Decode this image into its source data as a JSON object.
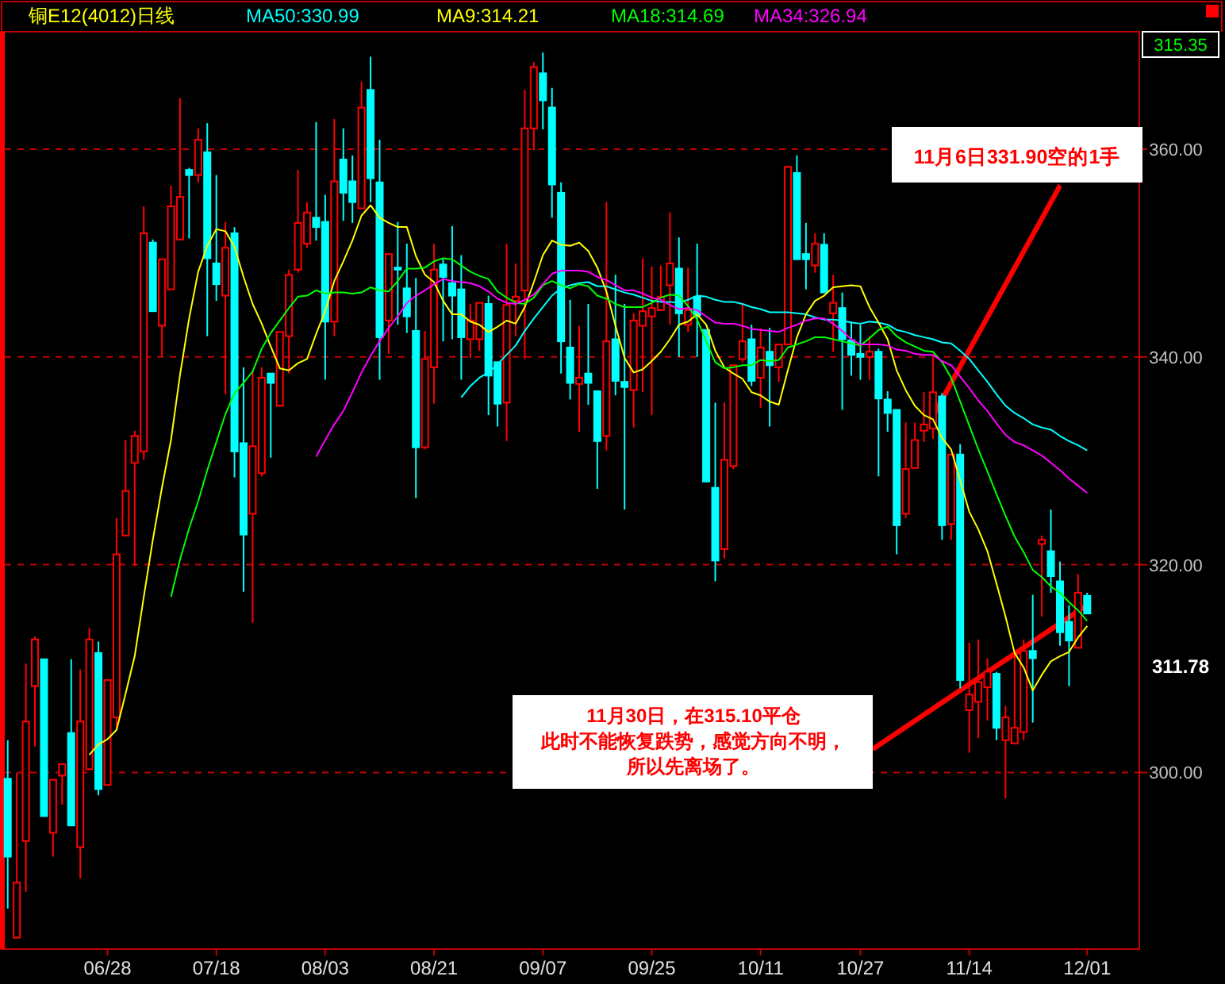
{
  "chart_data": {
    "type": "candlestick",
    "title": "铜E12(4012)日线",
    "categories": [
      null,
      null,
      null,
      null,
      null,
      null,
      null,
      null,
      null,
      null,
      null,
      "06/28",
      null,
      null,
      null,
      null,
      null,
      null,
      null,
      null,
      null,
      null,
      null,
      "07/18",
      null,
      null,
      null,
      null,
      null,
      null,
      null,
      null,
      null,
      null,
      null,
      "08/03",
      null,
      null,
      null,
      null,
      null,
      null,
      null,
      null,
      null,
      null,
      null,
      "08/21",
      null,
      null,
      null,
      null,
      null,
      null,
      null,
      null,
      null,
      null,
      null,
      "09/07",
      null,
      null,
      null,
      null,
      null,
      null,
      null,
      null,
      null,
      null,
      null,
      "09/25",
      null,
      null,
      null,
      null,
      null,
      null,
      null,
      null,
      null,
      null,
      null,
      "10/11",
      null,
      null,
      null,
      null,
      null,
      null,
      null,
      null,
      null,
      null,
      "10/27",
      null,
      null,
      null,
      null,
      null,
      null,
      null,
      null,
      null,
      null,
      null,
      "11/14",
      null,
      null,
      null,
      null,
      null,
      null,
      null,
      null,
      null,
      null,
      null,
      null,
      "12/01"
    ],
    "ohlc": [
      [
        299.4,
        303.1,
        286.9,
        291.9
      ],
      [
        284.1,
        300.0,
        284.1,
        289.4
      ],
      [
        293.4,
        310.5,
        288.5,
        304.9
      ],
      [
        308.3,
        313.1,
        302.5,
        312.8
      ],
      [
        310.9,
        310.9,
        295.8,
        295.8
      ],
      [
        294.2,
        299.3,
        291.9,
        299.3
      ],
      [
        299.7,
        300.8,
        296.9,
        300.8
      ],
      [
        303.8,
        310.9,
        294.9,
        294.9
      ],
      [
        292.8,
        309.9,
        289.8,
        304.9
      ],
      [
        300.3,
        313.9,
        300.3,
        312.8
      ],
      [
        311.5,
        312.6,
        297.8,
        298.4
      ],
      [
        298.8,
        308.9,
        298.8,
        308.9
      ],
      [
        305.3,
        324.5,
        304.2,
        321.0
      ],
      [
        322.8,
        332.0,
        322.8,
        327.1
      ],
      [
        329.8,
        332.9,
        319.9,
        332.4
      ],
      [
        330.9,
        354.5,
        330.1,
        351.9
      ],
      [
        351.0,
        351.3,
        344.4,
        344.4
      ],
      [
        343.0,
        349.4,
        340.0,
        349.4
      ],
      [
        346.5,
        356.5,
        346.5,
        354.5
      ],
      [
        351.3,
        364.9,
        351.3,
        355.4
      ],
      [
        358.0,
        358.2,
        351.4,
        357.5
      ],
      [
        357.5,
        362.0,
        356.8,
        360.9
      ],
      [
        359.7,
        362.5,
        342.0,
        349.5
      ],
      [
        349.0,
        357.5,
        345.4,
        347.0
      ],
      [
        345.9,
        353.0,
        336.4,
        350.5
      ],
      [
        351.9,
        352.5,
        328.4,
        330.9
      ],
      [
        331.7,
        339.0,
        317.4,
        322.9
      ],
      [
        324.9,
        338.7,
        314.4,
        331.4
      ],
      [
        328.8,
        339.0,
        328.5,
        338.0
      ],
      [
        338.4,
        338.4,
        330.3,
        337.5
      ],
      [
        335.3,
        342.4,
        335.3,
        342.4
      ],
      [
        342.0,
        348.4,
        338.4,
        347.9
      ],
      [
        348.4,
        358.0,
        348.1,
        352.9
      ],
      [
        350.9,
        354.9,
        350.5,
        353.9
      ],
      [
        353.4,
        362.6,
        351.2,
        352.5
      ],
      [
        353.0,
        355.6,
        337.8,
        343.4
      ],
      [
        343.4,
        362.9,
        342.0,
        356.9
      ],
      [
        359.0,
        362.0,
        353.1,
        355.8
      ],
      [
        356.9,
        359.4,
        352.9,
        354.9
      ],
      [
        354.3,
        366.5,
        354.3,
        364.0
      ],
      [
        365.7,
        368.9,
        354.9,
        357.2
      ],
      [
        356.8,
        360.9,
        337.8,
        341.9
      ],
      [
        343.5,
        349.9,
        340.3,
        349.9
      ],
      [
        348.6,
        353.0,
        343.1,
        348.4
      ],
      [
        346.6,
        350.9,
        342.3,
        343.9
      ],
      [
        342.5,
        347.6,
        326.4,
        331.3
      ],
      [
        331.3,
        342.5,
        331.1,
        339.8
      ],
      [
        339.0,
        350.9,
        335.5,
        348.4
      ],
      [
        348.9,
        349.4,
        341.5,
        347.7
      ],
      [
        347.1,
        352.6,
        341.7,
        345.9
      ],
      [
        346.5,
        349.8,
        337.8,
        341.9
      ],
      [
        341.7,
        345.1,
        339.9,
        343.5
      ],
      [
        341.7,
        345.2,
        340.6,
        345.2
      ],
      [
        345.1,
        345.9,
        334.4,
        338.2
      ],
      [
        339.5,
        339.5,
        333.3,
        335.5
      ],
      [
        335.6,
        350.9,
        331.9,
        345.0
      ],
      [
        345.4,
        349.0,
        342.0,
        345.8
      ],
      [
        346.4,
        365.7,
        339.8,
        362.0
      ],
      [
        362.0,
        368.4,
        359.9,
        367.9
      ],
      [
        367.3,
        369.3,
        361.9,
        364.7
      ],
      [
        364.0,
        365.9,
        353.4,
        356.6
      ],
      [
        355.8,
        356.8,
        338.4,
        341.5
      ],
      [
        340.9,
        345.5,
        335.9,
        337.5
      ],
      [
        337.4,
        343.0,
        332.8,
        338.0
      ],
      [
        338.4,
        345.1,
        335.4,
        337.5
      ],
      [
        336.7,
        336.7,
        327.3,
        331.9
      ],
      [
        332.4,
        354.9,
        331.0,
        341.5
      ],
      [
        341.7,
        347.9,
        336.3,
        337.7
      ],
      [
        337.6,
        345.1,
        325.3,
        337.1
      ],
      [
        336.8,
        344.2,
        333.2,
        343.5
      ],
      [
        343.0,
        349.5,
        336.6,
        344.4
      ],
      [
        343.9,
        348.7,
        334.4,
        344.7
      ],
      [
        344.5,
        348.8,
        344.5,
        345.8
      ],
      [
        346.9,
        353.9,
        343.1,
        349.0
      ],
      [
        348.5,
        351.5,
        340.0,
        344.2
      ],
      [
        343.1,
        348.6,
        342.4,
        344.5
      ],
      [
        345.8,
        350.9,
        340.0,
        344.0
      ],
      [
        342.6,
        342.6,
        328.0,
        328.0
      ],
      [
        327.4,
        335.6,
        318.4,
        320.4
      ],
      [
        321.5,
        335.6,
        320.6,
        330.1
      ],
      [
        329.5,
        339.2,
        329.2,
        339.2
      ],
      [
        339.8,
        345.1,
        339.5,
        341.5
      ],
      [
        341.7,
        343.1,
        337.2,
        337.7
      ],
      [
        338.0,
        342.7,
        335.1,
        340.9
      ],
      [
        340.5,
        342.8,
        333.3,
        339.2
      ],
      [
        339.0,
        341.2,
        337.6,
        341.2
      ],
      [
        341.2,
        358.4,
        341.2,
        358.3
      ],
      [
        357.7,
        359.4,
        349.4,
        349.4
      ],
      [
        349.9,
        352.9,
        346.5,
        349.4
      ],
      [
        348.8,
        351.9,
        348.1,
        350.9
      ],
      [
        350.8,
        351.9,
        346.2,
        346.2
      ],
      [
        344.2,
        347.9,
        340.5,
        345.2
      ],
      [
        344.7,
        346.2,
        334.9,
        341.7
      ],
      [
        341.6,
        343.4,
        338.2,
        340.2
      ],
      [
        340.3,
        343.1,
        337.8,
        340.0
      ],
      [
        340.0,
        342.0,
        337.8,
        340.5
      ],
      [
        340.5,
        340.8,
        328.5,
        336.0
      ],
      [
        335.9,
        336.7,
        332.8,
        334.6
      ],
      [
        334.9,
        334.9,
        321.0,
        323.8
      ],
      [
        324.9,
        333.7,
        324.5,
        329.2
      ],
      [
        329.3,
        333.7,
        329.3,
        332.0
      ],
      [
        332.9,
        336.6,
        331.8,
        333.5
      ],
      [
        333.1,
        339.9,
        332.1,
        336.6
      ],
      [
        336.2,
        336.5,
        322.4,
        323.8
      ],
      [
        323.9,
        330.6,
        322.4,
        330.6
      ],
      [
        330.6,
        331.6,
        308.1,
        308.9
      ],
      [
        306.0,
        312.5,
        301.9,
        307.5
      ],
      [
        306.8,
        312.8,
        303.3,
        308.7
      ],
      [
        308.2,
        311.0,
        305.0,
        309.7
      ],
      [
        309.5,
        309.7,
        303.1,
        304.3
      ],
      [
        303.1,
        306.4,
        297.5,
        305.3
      ],
      [
        302.8,
        311.4,
        302.8,
        304.3
      ],
      [
        303.9,
        312.8,
        303.1,
        311.7
      ],
      [
        311.7,
        317.1,
        304.8,
        311.0
      ],
      [
        322.0,
        322.8,
        315.0,
        322.4
      ],
      [
        321.3,
        325.3,
        317.3,
        318.9
      ],
      [
        318.4,
        320.3,
        312.2,
        313.5
      ],
      [
        314.5,
        316.1,
        308.3,
        312.7
      ],
      [
        312.0,
        319.1,
        312.0,
        317.3
      ],
      [
        317.0,
        317.3,
        315.3,
        315.3
      ]
    ],
    "colors": [
      "#00ffff",
      "#ff0000",
      "#ff0000",
      "#ff0000",
      "#00ffff",
      "#ff0000",
      "#ff0000",
      "#00ffff",
      "#ff0000",
      "#ff0000",
      "#00ffff",
      "#ff0000",
      "#ff0000",
      "#ff0000",
      "#ff0000",
      "#ff0000",
      "#00ffff",
      "#ff0000",
      "#ff0000",
      "#ff0000",
      "#00ffff",
      "#ff0000",
      "#00ffff",
      "#00ffff",
      "#ff0000",
      "#00ffff",
      "#00ffff",
      "#ff0000",
      "#ff0000",
      "#00ffff",
      "#ff0000",
      "#ff0000",
      "#ff0000",
      "#ff0000",
      "#00ffff",
      "#00ffff",
      "#ff0000",
      "#00ffff",
      "#00ffff",
      "#ff0000",
      "#00ffff",
      "#00ffff",
      "#ff0000",
      "#00ffff",
      "#00ffff",
      "#00ffff",
      "#ff0000",
      "#ff0000",
      "#00ffff",
      "#00ffff",
      "#00ffff",
      "#ff0000",
      "#ff0000",
      "#00ffff",
      "#00ffff",
      "#ff0000",
      "#ff0000",
      "#ff0000",
      "#ff0000",
      "#00ffff",
      "#00ffff",
      "#00ffff",
      "#00ffff",
      "#ff0000",
      "#00ffff",
      "#00ffff",
      "#ff0000",
      "#00ffff",
      "#00ffff",
      "#ff0000",
      "#ff0000",
      "#ff0000",
      "#ff0000",
      "#ff0000",
      "#00ffff",
      "#ff0000",
      "#00ffff",
      "#00ffff",
      "#00ffff",
      "#ff0000",
      "#ff0000",
      "#ff0000",
      "#00ffff",
      "#ff0000",
      "#00ffff",
      "#ff0000",
      "#ff0000",
      "#00ffff",
      "#00ffff",
      "#ff0000",
      "#00ffff",
      "#ff0000",
      "#00ffff",
      "#00ffff",
      "#00ffff",
      "#ff0000",
      "#00ffff",
      "#00ffff",
      "#00ffff",
      "#ff0000",
      "#ff0000",
      "#ff0000",
      "#ff0000",
      "#00ffff",
      "#ff0000",
      "#00ffff",
      "#ff0000",
      "#ff0000",
      "#ff0000",
      "#00ffff",
      "#ff0000",
      "#ff0000",
      "#ff0000",
      "#00ffff",
      "#ff0000",
      "#00ffff",
      "#00ffff",
      "#00ffff",
      "#ff0000",
      "#00ffff"
    ],
    "series": [
      {
        "name": "MA50:330.99",
        "type": "line",
        "color": "#00ffff",
        "values": [
          null,
          null,
          null,
          null,
          null,
          null,
          null,
          null,
          null,
          null,
          null,
          null,
          null,
          null,
          null,
          null,
          null,
          null,
          null,
          null,
          null,
          null,
          null,
          null,
          null,
          null,
          null,
          null,
          null,
          null,
          null,
          null,
          null,
          null,
          null,
          null,
          null,
          null,
          null,
          null,
          null,
          null,
          null,
          null,
          null,
          null,
          null,
          null,
          null,
          null,
          336.1,
          337.2,
          338.0,
          338.5,
          339.3,
          340.2,
          341.1,
          342.5,
          343.7,
          344.8,
          345.9,
          346.6,
          346.9,
          347.1,
          347.2,
          346.8,
          346.8,
          346.5,
          346.2,
          346.0,
          345.7,
          345.4,
          345.3,
          345.3,
          345.2,
          345.5,
          345.9,
          345.8,
          345.5,
          345.3,
          345.3,
          345.1,
          344.8,
          344.6,
          344.3,
          344.3,
          344.3,
          344.2,
          344.1,
          343.8,
          343.6,
          343.6,
          343.5,
          343.3,
          343.2,
          343.4,
          343.3,
          343.1,
          342.6,
          342.4,
          342.1,
          341.9,
          341.7,
          341.4,
          341.3,
          340.6,
          339.8,
          338.7,
          337.6,
          336.4,
          335.3,
          334.6,
          334.1,
          333.5,
          333.2,
          333.0,
          332.4,
          331.9,
          331.5,
          331.0
        ]
      },
      {
        "name": "MA9:314.21",
        "type": "line",
        "color": "#ffff00",
        "values": [
          null,
          null,
          null,
          null,
          null,
          null,
          null,
          null,
          null,
          301.7,
          302.7,
          303.2,
          304.1,
          307.6,
          311.2,
          316.9,
          322.4,
          327.4,
          332.0,
          338.3,
          343.7,
          348.2,
          350.7,
          352.3,
          352.1,
          350.6,
          347.7,
          345.1,
          343.2,
          341.0,
          338.9,
          338.7,
          339.4,
          339.8,
          342.2,
          344.4,
          347.3,
          349.2,
          351.2,
          353.6,
          354.6,
          353.4,
          352.9,
          352.5,
          352.5,
          349.7,
          347.9,
          347.2,
          345.4,
          344.1,
          344.1,
          343.4,
          343.1,
          342.4,
          342.9,
          343.5,
          343.2,
          344.8,
          347.2,
          349.8,
          351.2,
          350.8,
          350.7,
          351.0,
          350.2,
          348.6,
          346.3,
          343.0,
          339.9,
          338.5,
          338.8,
          339.6,
          340.5,
          341.7,
          343.1,
          343.4,
          344.1,
          343.1,
          340.6,
          339.0,
          338.4,
          337.9,
          336.6,
          336.3,
          335.7,
          335.4,
          338.7,
          341.9,
          344.1,
          345.4,
          345.9,
          346.7,
          346.8,
          346.9,
          346.8,
          344.8,
          343.3,
          341.7,
          338.7,
          336.8,
          335.3,
          334.4,
          334.0,
          332.2,
          331.1,
          328.1,
          325.1,
          323.4,
          321.3,
          318.2,
          315.0,
          311.5,
          310.1,
          307.9,
          309.4,
          310.7,
          311.2,
          311.6,
          313.0,
          314.1
        ]
      },
      {
        "name": "MA18:314.69",
        "type": "line",
        "color": "#00ff00",
        "values": [
          null,
          null,
          null,
          null,
          null,
          null,
          null,
          null,
          null,
          null,
          null,
          null,
          null,
          null,
          null,
          null,
          null,
          null,
          316.9,
          320.5,
          323.5,
          326.1,
          329.1,
          331.8,
          334.5,
          336.5,
          337.5,
          338.6,
          340.8,
          342.3,
          343.5,
          344.7,
          345.8,
          345.9,
          346.4,
          346.1,
          346.2,
          346.2,
          346.1,
          346.2,
          346.7,
          346.4,
          346.3,
          347.3,
          348.5,
          348.5,
          348.6,
          349.2,
          349.5,
          349.4,
          348.8,
          348.2,
          347.8,
          347.5,
          346.3,
          345.7,
          345.2,
          345.1,
          345.7,
          346.9,
          347.3,
          346.9,
          346.6,
          347.0,
          346.8,
          345.9,
          345.6,
          345.1,
          344.8,
          344.8,
          344.8,
          345.2,
          345.7,
          346.0,
          345.9,
          344.9,
          343.6,
          341.5,
          339.5,
          338.9,
          339.0,
          339.2,
          339.2,
          339.7,
          339.6,
          339.7,
          340.9,
          341.2,
          341.5,
          341.9,
          341.9,
          341.7,
          341.5,
          341.3,
          341.1,
          341.8,
          342.6,
          342.9,
          342.0,
          341.4,
          341.0,
          340.6,
          340.5,
          339.5,
          338.0,
          335.7,
          333.4,
          331.1,
          329.0,
          326.8,
          324.7,
          322.7,
          321.2,
          319.5,
          318.8,
          317.9,
          317.3,
          316.4,
          315.6,
          314.6
        ]
      },
      {
        "name": "MA34:326.94",
        "type": "line",
        "color": "#ff00ff",
        "values": [
          null,
          null,
          null,
          null,
          null,
          null,
          null,
          null,
          null,
          null,
          null,
          null,
          null,
          null,
          null,
          null,
          null,
          null,
          null,
          null,
          null,
          null,
          null,
          null,
          null,
          null,
          null,
          null,
          null,
          null,
          null,
          null,
          null,
          null,
          330.4,
          332.0,
          333.5,
          334.8,
          336.6,
          338.5,
          340.1,
          341.5,
          342.8,
          343.9,
          345.2,
          345.9,
          346.4,
          347.0,
          347.5,
          347.3,
          347.2,
          347.1,
          346.8,
          346.3,
          345.6,
          345.2,
          345.1,
          345.5,
          346.0,
          347.0,
          348.0,
          348.3,
          348.3,
          348.3,
          348.2,
          347.7,
          347.4,
          346.9,
          346.4,
          346.4,
          346.1,
          345.7,
          345.5,
          345.0,
          344.6,
          344.7,
          344.5,
          343.9,
          343.3,
          343.2,
          343.2,
          343.0,
          342.7,
          342.6,
          342.5,
          342.4,
          342.8,
          343.1,
          343.5,
          343.7,
          343.7,
          343.2,
          342.5,
          341.7,
          341.2,
          341.2,
          341.2,
          341.1,
          340.7,
          340.6,
          340.3,
          340.2,
          340.2,
          339.6,
          339.2,
          338.1,
          337.0,
          335.8,
          334.8,
          333.6,
          332.5,
          331.8,
          331.5,
          331.0,
          330.5,
          329.8,
          329.1,
          328.3,
          327.6,
          326.9
        ]
      }
    ],
    "ylim": [
      283,
      371.3
    ],
    "yticks": [
      {
        "value": 300,
        "label": "300.00"
      },
      {
        "value": 320,
        "label": "320.00"
      },
      {
        "value": 340,
        "label": "340.00"
      },
      {
        "value": 360,
        "label": "360.00"
      }
    ],
    "grid": "y",
    "legend": "top left",
    "line_style": "solid",
    "annotations": [
      "11月6日331.90空的1手",
      "11月30日，在315.10平仓",
      "此时不能恢复跌势，感觉方向不明，",
      "所以先离场了。",
      "315.35",
      "311.78"
    ]
  }
}
